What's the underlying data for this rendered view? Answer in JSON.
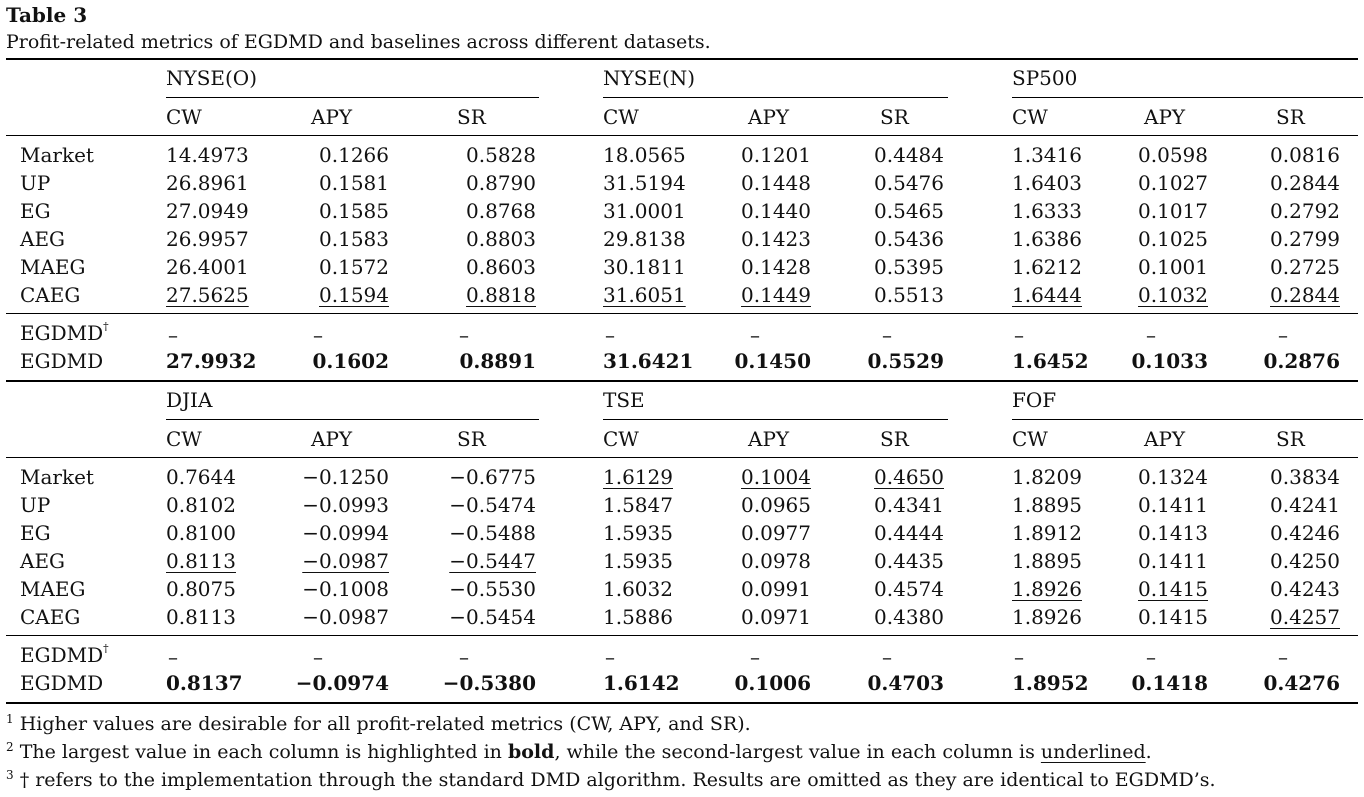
{
  "table_label": "Table 3",
  "caption": "Profit-related metrics of EGDMD and baselines across different datasets.",
  "metrics": [
    "CW",
    "APY",
    "SR"
  ],
  "row_labels": [
    "Market",
    "UP",
    "EG",
    "AEG",
    "MAEG",
    "CAEG"
  ],
  "egdmd_dagger_label": "EGDMD",
  "egdmd_dagger_mark": "†",
  "egdmd_label": "EGDMD",
  "dash": "–",
  "panels": [
    {
      "datasets": [
        "NYSE(O)",
        "NYSE(N)",
        "SP500"
      ],
      "rows": [
        [
          "14.4973",
          "0.1266",
          "0.5828",
          "18.0565",
          "0.1201",
          "0.4484",
          "1.3416",
          "0.0598",
          "0.0816"
        ],
        [
          "26.8961",
          "0.1581",
          "0.8790",
          "31.5194",
          "0.1448",
          "0.5476",
          "1.6403",
          "0.1027",
          "0.2844"
        ],
        [
          "27.0949",
          "0.1585",
          "0.8768",
          "31.0001",
          "0.1440",
          "0.5465",
          "1.6333",
          "0.1017",
          "0.2792"
        ],
        [
          "26.9957",
          "0.1583",
          "0.8803",
          "29.8138",
          "0.1423",
          "0.5436",
          "1.6386",
          "0.1025",
          "0.2799"
        ],
        [
          "26.4001",
          "0.1572",
          "0.8603",
          "30.1811",
          "0.1428",
          "0.5395",
          "1.6212",
          "0.1001",
          "0.2725"
        ],
        [
          "27.5625",
          "0.1594",
          "0.8818",
          "31.6051",
          "0.1449",
          "0.5513",
          "1.6444",
          "0.1032",
          "0.2844"
        ]
      ],
      "underlined": [
        [
          5,
          0
        ],
        [
          5,
          1
        ],
        [
          5,
          2
        ],
        [
          5,
          3
        ],
        [
          5,
          4
        ],
        [
          5,
          6
        ],
        [
          5,
          7
        ],
        [
          5,
          8
        ]
      ],
      "egdmd": [
        "27.9932",
        "0.1602",
        "0.8891",
        "31.6421",
        "0.1450",
        "0.5529",
        "1.6452",
        "0.1033",
        "0.2876"
      ]
    },
    {
      "datasets": [
        "DJIA",
        "TSE",
        "FOF"
      ],
      "rows": [
        [
          "0.7644",
          "−0.1250",
          "−0.6775",
          "1.6129",
          "0.1004",
          "0.4650",
          "1.8209",
          "0.1324",
          "0.3834"
        ],
        [
          "0.8102",
          "−0.0993",
          "−0.5474",
          "1.5847",
          "0.0965",
          "0.4341",
          "1.8895",
          "0.1411",
          "0.4241"
        ],
        [
          "0.8100",
          "−0.0994",
          "−0.5488",
          "1.5935",
          "0.0977",
          "0.4444",
          "1.8912",
          "0.1413",
          "0.4246"
        ],
        [
          "0.8113",
          "−0.0987",
          "−0.5447",
          "1.5935",
          "0.0978",
          "0.4435",
          "1.8895",
          "0.1411",
          "0.4250"
        ],
        [
          "0.8075",
          "−0.1008",
          "−0.5530",
          "1.6032",
          "0.0991",
          "0.4574",
          "1.8926",
          "0.1415",
          "0.4243"
        ],
        [
          "0.8113",
          "−0.0987",
          "−0.5454",
          "1.5886",
          "0.0971",
          "0.4380",
          "1.8926",
          "0.1415",
          "0.4257"
        ]
      ],
      "underlined": [
        [
          3,
          0
        ],
        [
          3,
          1
        ],
        [
          3,
          2
        ],
        [
          0,
          3
        ],
        [
          0,
          4
        ],
        [
          0,
          5
        ],
        [
          4,
          6
        ],
        [
          4,
          7
        ],
        [
          5,
          8
        ]
      ],
      "egdmd": [
        "0.8137",
        "−0.0974",
        "−0.5380",
        "1.6142",
        "0.1006",
        "0.4703",
        "1.8952",
        "0.1418",
        "0.4276"
      ]
    }
  ],
  "footnotes": [
    {
      "mark": "1",
      "parts": [
        {
          "t": "Higher values are desirable for all profit-related metrics (CW, APY, and SR)."
        }
      ]
    },
    {
      "mark": "2",
      "parts": [
        {
          "t": "The largest value in each column is highlighted in "
        },
        {
          "t": "bold",
          "style": "bold"
        },
        {
          "t": ", while the second-largest value in each column is "
        },
        {
          "t": "underlined",
          "style": "ul"
        },
        {
          "t": "."
        }
      ]
    },
    {
      "mark": "3",
      "parts": [
        {
          "t": "† refers to the implementation through the standard DMD algorithm. Results are omitted as they are identical to EGDMD’s."
        }
      ]
    }
  ]
}
